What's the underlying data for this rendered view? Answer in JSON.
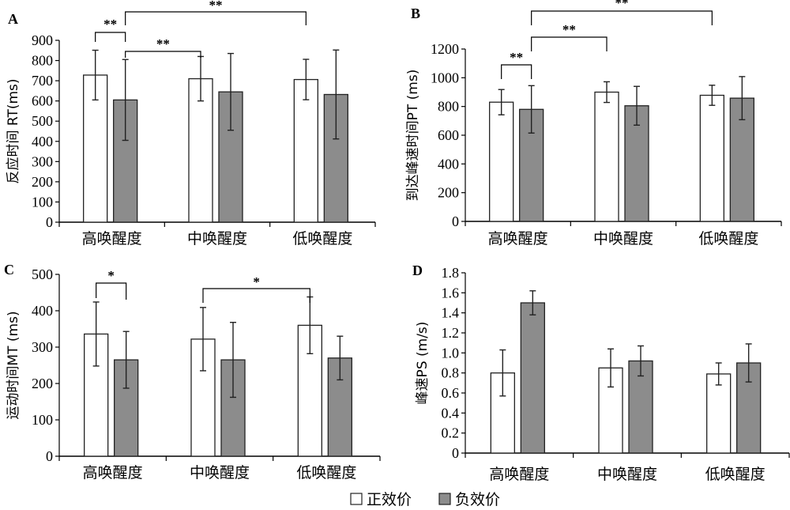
{
  "legend": {
    "items": [
      {
        "label": "正效价",
        "color": "#ffffff"
      },
      {
        "label": "负效价",
        "color": "#8c8c8c"
      }
    ]
  },
  "chart_data": [
    {
      "panel": "A",
      "type": "bar",
      "ylabel": "反应时间 RT(ms)",
      "ylim": [
        0,
        900
      ],
      "yticks": [
        0,
        100,
        200,
        300,
        400,
        500,
        600,
        700,
        800,
        900
      ],
      "categories": [
        "高唤醒度",
        "中唤醒度",
        "低唤醒度"
      ],
      "series": [
        {
          "name": "正效价",
          "values": [
            728,
            710,
            706
          ],
          "errors": [
            123,
            110,
            100
          ]
        },
        {
          "name": "负效价",
          "values": [
            605,
            645,
            632
          ],
          "errors": [
            200,
            190,
            220
          ]
        }
      ],
      "significance": [
        {
          "label": "**",
          "from": [
            0,
            0
          ],
          "to": [
            0,
            1
          ]
        },
        {
          "label": "**",
          "from": [
            0,
            1
          ],
          "to": [
            1,
            0
          ]
        },
        {
          "label": "**",
          "from": [
            0,
            1
          ],
          "to": [
            2,
            0
          ]
        }
      ]
    },
    {
      "panel": "B",
      "type": "bar",
      "ylabel": "到达峰速时间PT (ms)",
      "ylim": [
        0,
        1200
      ],
      "yticks": [
        0,
        200,
        400,
        600,
        800,
        1000,
        1200
      ],
      "categories": [
        "高唤醒度",
        "中唤醒度",
        "低唤醒度"
      ],
      "series": [
        {
          "name": "正效价",
          "values": [
            830,
            900,
            878
          ],
          "errors": [
            88,
            72,
            70
          ]
        },
        {
          "name": "负效价",
          "values": [
            780,
            805,
            858
          ],
          "errors": [
            165,
            135,
            150
          ]
        }
      ],
      "significance": [
        {
          "label": "**",
          "from": [
            0,
            0
          ],
          "to": [
            0,
            1
          ]
        },
        {
          "label": "**",
          "from": [
            0,
            1
          ],
          "to": [
            1,
            0
          ]
        },
        {
          "label": "**",
          "from": [
            0,
            1
          ],
          "to": [
            2,
            0
          ]
        }
      ]
    },
    {
      "panel": "C",
      "type": "bar",
      "ylabel": "运动时间MT (ms)",
      "ylim": [
        0,
        500
      ],
      "yticks": [
        0,
        100,
        200,
        300,
        400,
        500
      ],
      "categories": [
        "高唤醒度",
        "中唤醒度",
        "低唤醒度"
      ],
      "series": [
        {
          "name": "正效价",
          "values": [
            336,
            322,
            360
          ],
          "errors": [
            88,
            87,
            78
          ]
        },
        {
          "name": "负效价",
          "values": [
            265,
            265,
            270
          ],
          "errors": [
            78,
            103,
            60
          ]
        }
      ],
      "significance": [
        {
          "label": "*",
          "from": [
            0,
            0
          ],
          "to": [
            0,
            1
          ]
        },
        {
          "label": "*",
          "from": [
            1,
            0
          ],
          "to": [
            2,
            0
          ]
        }
      ]
    },
    {
      "panel": "D",
      "type": "bar",
      "ylabel": "峰速PS (m/s)",
      "ylim": [
        0,
        1.8
      ],
      "yticks": [
        "0",
        "0.2",
        "0.4",
        "0.6",
        "0.8",
        "1.0",
        "1.2",
        "1.4",
        "1.6",
        "1.8"
      ],
      "categories": [
        "高唤醒度",
        "中唤醒度",
        "低唤醒度"
      ],
      "series": [
        {
          "name": "正效价",
          "values": [
            0.8,
            0.85,
            0.79
          ],
          "errors": [
            0.23,
            0.19,
            0.11
          ]
        },
        {
          "name": "负效价",
          "values": [
            1.5,
            0.92,
            0.9
          ],
          "errors": [
            0.12,
            0.15,
            0.19
          ]
        }
      ],
      "significance": []
    }
  ]
}
